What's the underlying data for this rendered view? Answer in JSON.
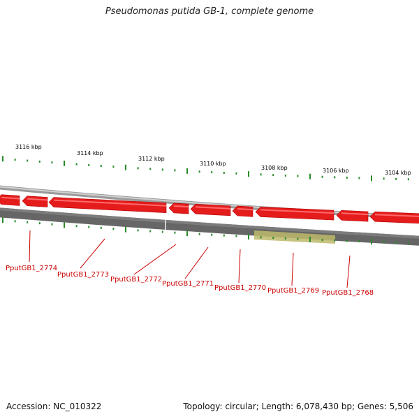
{
  "title": "Pseudomonas putida GB-1, complete genome",
  "footer": {
    "accession": "Accession: NC_010322",
    "stats": "Topology: circular; Length: 6,078,430 bp; Genes: 5,506"
  },
  "colors": {
    "gene_arrow": "#e51c1c",
    "track_dark": "#6b6b6b",
    "highlight": "#bdb86b",
    "tick_green": "#2a8a2a",
    "label_red": "#cc0000"
  },
  "scale_labels": [
    "3116 kbp",
    "3114 kbp",
    "3112 kbp",
    "3110 kbp",
    "3108 kbp",
    "3106 kbp",
    "3104 kbp"
  ],
  "genes": [
    "PputGB1_2774",
    "PputGB1_2773",
    "PputGB1_2772",
    "PputGB1_2771",
    "PputGB1_2770",
    "PputGB1_2769",
    "PputGB1_2768"
  ],
  "highlighted_gene": "PputGB1_2769",
  "gene_strand": "reverse"
}
